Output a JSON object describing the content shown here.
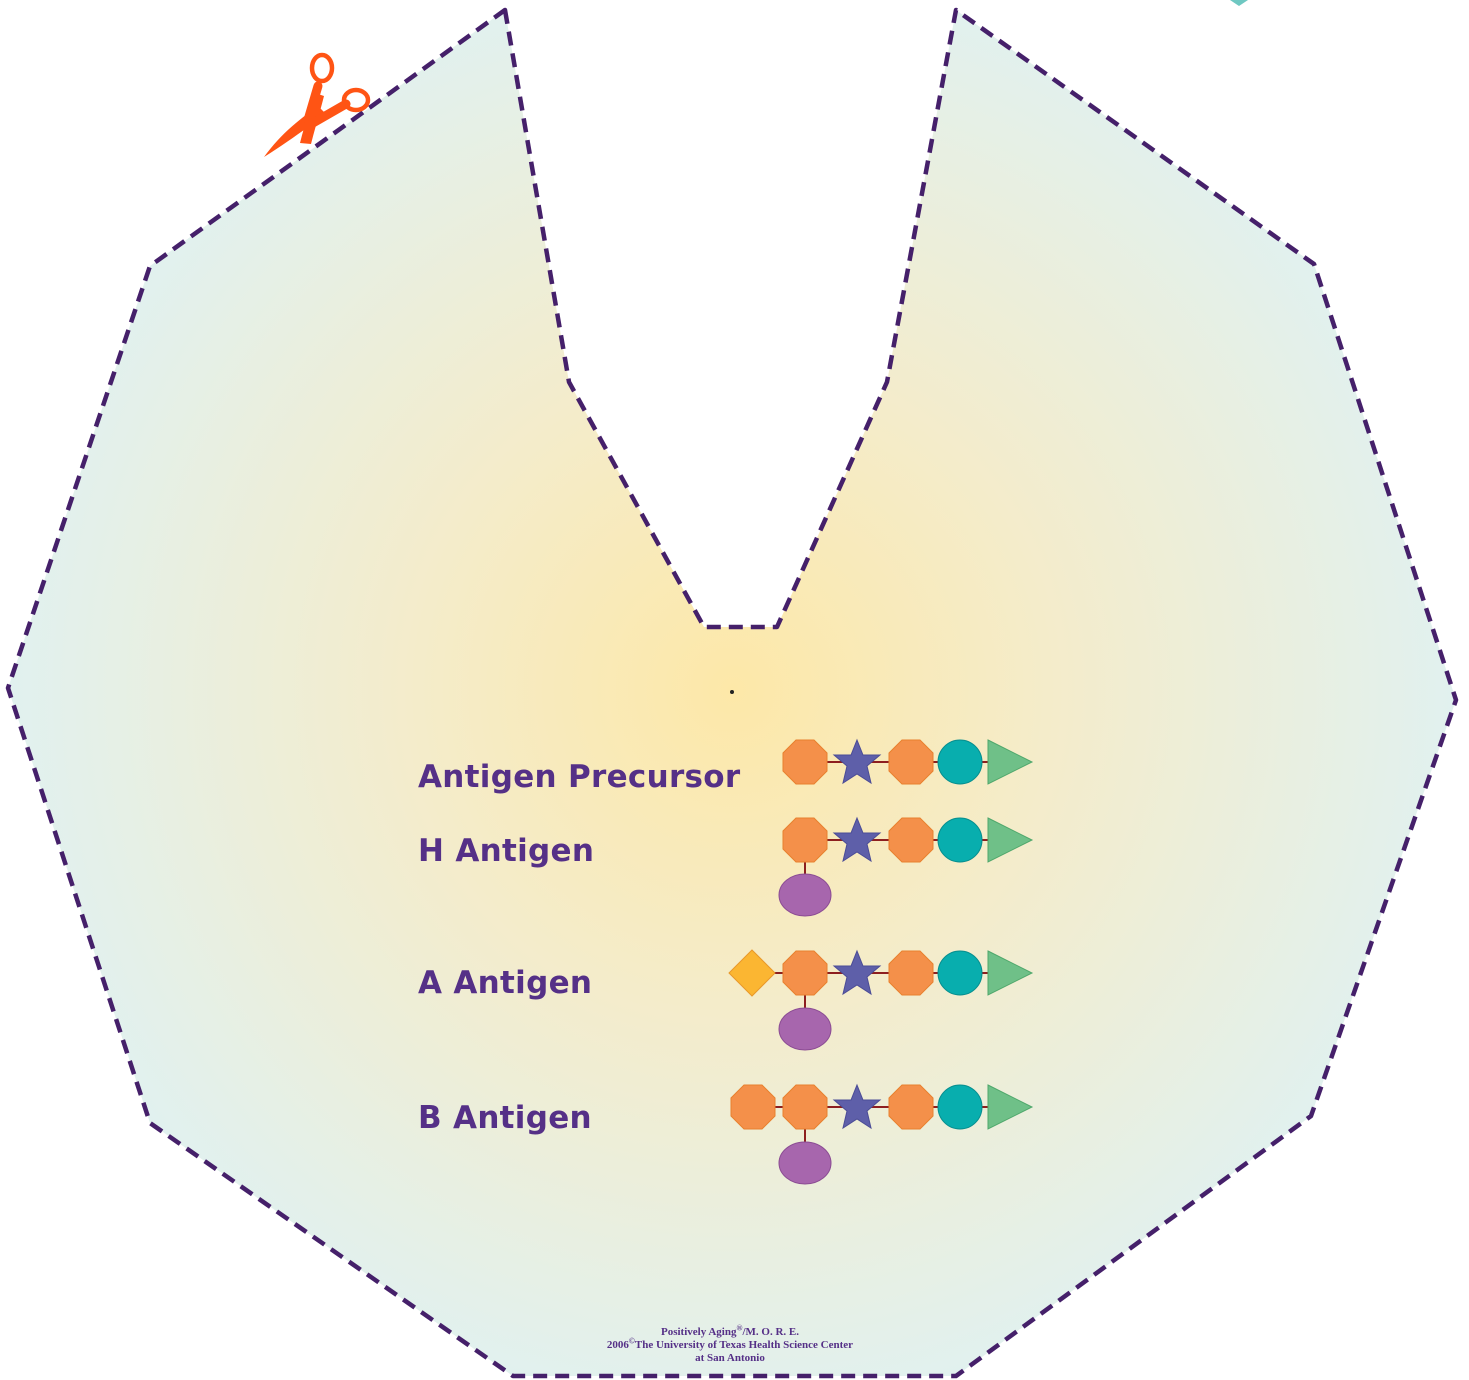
{
  "labels": {
    "precursor": "Antigen Precursor",
    "h_antigen": "H Antigen",
    "a_antigen": "A Antigen",
    "b_antigen": "B Antigen"
  },
  "credits": {
    "line1_brand": "Positively Aging",
    "line1_registered": "®",
    "line1_suffix": "/M. O. R. E.",
    "line2_year": "2006",
    "line2_copyright": "©",
    "line2_org": "The University of Texas Health Science Center",
    "line3": "at San Antonio"
  },
  "colors": {
    "outline": "#45206a",
    "text": "#553087",
    "orange_octagon": "#f4904a",
    "blue_star": "#5e5fa9",
    "teal_circle": "#08aeae",
    "green_triangle": "#6fc088",
    "purple_oval": "#a766ad",
    "yellow_diamond": "#fbb632",
    "scissors": "#ff5414",
    "link": "#8d1f1f",
    "fill_center": "#fde8a8",
    "fill_edge": "#e1f1ef"
  },
  "icons": {
    "scissors": "scissors-icon",
    "cut_corner_mark": "corner-mark-icon"
  }
}
